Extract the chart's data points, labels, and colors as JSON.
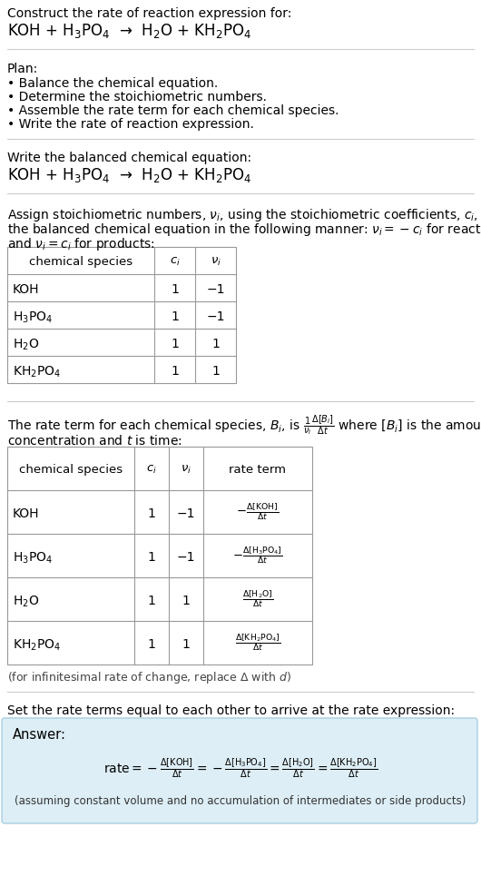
{
  "title_line1": "Construct the rate of reaction expression for:",
  "title_line2": "KOH + H$_3$PO$_4$  →  H$_2$O + KH$_2$PO$_4$",
  "plan_header": "Plan:",
  "plan_items": [
    "• Balance the chemical equation.",
    "• Determine the stoichiometric numbers.",
    "• Assemble the rate term for each chemical species.",
    "• Write the rate of reaction expression."
  ],
  "balanced_header": "Write the balanced chemical equation:",
  "balanced_eq": "KOH + H$_3$PO$_4$  →  H$_2$O + KH$_2$PO$_4$",
  "stoich_intro_l1": "Assign stoichiometric numbers, $\\nu_i$, using the stoichiometric coefficients, $c_i$, from",
  "stoich_intro_l2": "the balanced chemical equation in the following manner: $\\nu_i = -c_i$ for reactants",
  "stoich_intro_l3": "and $\\nu_i = c_i$ for products:",
  "table1_headers": [
    "chemical species",
    "$c_i$",
    "$\\nu_i$"
  ],
  "table1_rows": [
    [
      "KOH",
      "1",
      "−1"
    ],
    [
      "H$_3$PO$_4$",
      "1",
      "−1"
    ],
    [
      "H$_2$O",
      "1",
      "1"
    ],
    [
      "KH$_2$PO$_4$",
      "1",
      "1"
    ]
  ],
  "rate_intro_l1": "The rate term for each chemical species, $B_i$, is $\\frac{1}{\\nu_i}\\frac{\\Delta[B_i]}{\\Delta t}$ where $[B_i]$ is the amount",
  "rate_intro_l2": "concentration and $t$ is time:",
  "table2_headers": [
    "chemical species",
    "$c_i$",
    "$\\nu_i$",
    "rate term"
  ],
  "table2_rows": [
    [
      "KOH",
      "1",
      "−1",
      "$-\\frac{\\Delta[\\mathrm{KOH}]}{\\Delta t}$"
    ],
    [
      "H$_3$PO$_4$",
      "1",
      "−1",
      "$-\\frac{\\Delta[\\mathrm{H_3PO_4}]}{\\Delta t}$"
    ],
    [
      "H$_2$O",
      "1",
      "1",
      "$\\frac{\\Delta[\\mathrm{H_2O}]}{\\Delta t}$"
    ],
    [
      "KH$_2$PO$_4$",
      "1",
      "1",
      "$\\frac{\\Delta[\\mathrm{KH_2PO_4}]}{\\Delta t}$"
    ]
  ],
  "infinitesimal_note": "(for infinitesimal rate of change, replace Δ with $d$)",
  "set_equal_header": "Set the rate terms equal to each other to arrive at the rate expression:",
  "answer_label": "Answer:",
  "rate_expr": "$\\mathrm{rate} = -\\frac{\\Delta[\\mathrm{KOH}]}{\\Delta t} = -\\frac{\\Delta[\\mathrm{H_3PO_4}]}{\\Delta t} = \\frac{\\Delta[\\mathrm{H_2O}]}{\\Delta t} = \\frac{\\Delta[\\mathrm{KH_2PO_4}]}{\\Delta t}$",
  "answer_note": "(assuming constant volume and no accumulation of intermediates or side products)",
  "bg_color": "#ffffff",
  "answer_box_color": "#ddeef6",
  "answer_box_border": "#a8cfe0",
  "text_color": "#000000",
  "table_border_color": "#999999",
  "sep_color": "#cccccc"
}
